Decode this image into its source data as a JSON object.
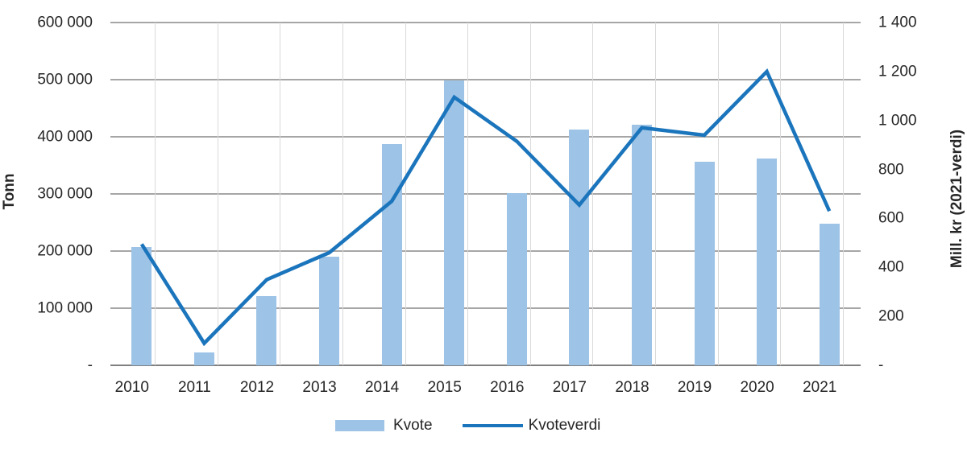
{
  "chart_data": {
    "type": "bar+line combo",
    "categories": [
      "2010",
      "2011",
      "2012",
      "2013",
      "2014",
      "2015",
      "2016",
      "2017",
      "2018",
      "2019",
      "2020",
      "2021"
    ],
    "series": [
      {
        "name": "Kvote",
        "type": "bar",
        "axis": "left",
        "color": "#9dc3e6",
        "values": [
          207000,
          22000,
          121000,
          190000,
          388000,
          499000,
          301000,
          412000,
          421000,
          356000,
          362000,
          248000
        ]
      },
      {
        "name": "Kvoteverdi",
        "type": "line",
        "axis": "right",
        "color": "#1b75bc",
        "values": [
          495,
          90,
          350,
          460,
          670,
          1095,
          915,
          655,
          970,
          940,
          1200,
          630
        ]
      }
    ],
    "left_axis": {
      "title": "Tonn",
      "min": 0,
      "max": 600000,
      "step": 100000,
      "tick_labels_bottom_to_top": [
        "-",
        "100 000",
        "200 000",
        "300 000",
        "400 000",
        "500 000",
        "600 000"
      ]
    },
    "right_axis": {
      "title": "Mill. kr (2021-verdi)",
      "min": 0,
      "max": 1400,
      "step": 200,
      "tick_labels_bottom_to_top": [
        "-",
        "200",
        "400",
        "600",
        "800",
        "1 000",
        "1 200",
        "1 400"
      ]
    },
    "legend": [
      {
        "label": "Kvote",
        "swatch": "bar"
      },
      {
        "label": "Kvoteverdi",
        "swatch": "line"
      }
    ],
    "layout": {
      "grid": "horizontal-and-category-separators",
      "legend_position": "bottom-center"
    },
    "colors": {
      "bar": "#9dc3e6",
      "line": "#1b75bc",
      "grid_horizontal": "#a6a6a6",
      "grid_vertical": "#d9d9d9",
      "axis_baseline": "#808080",
      "text": "#262626",
      "background": "#ffffff"
    }
  }
}
